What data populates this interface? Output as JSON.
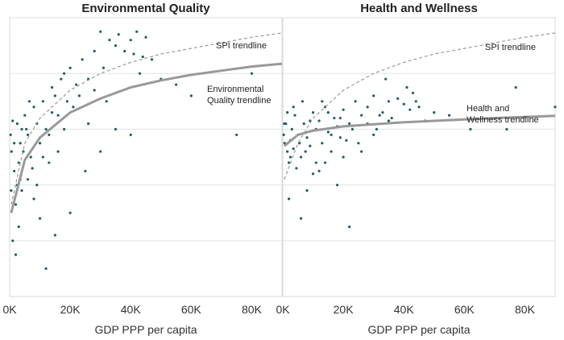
{
  "chart_data": [
    {
      "type": "scatter",
      "title": "Environmental Quality",
      "xlabel": "GDP PPP per capita",
      "xlim": [
        0,
        90000
      ],
      "x_ticks": [
        0,
        20000,
        40000,
        60000,
        80000
      ],
      "x_tick_labels": [
        "0K",
        "20K",
        "40K",
        "60K",
        "80K"
      ],
      "ylim": [
        0,
        100
      ],
      "gridlines_y": [
        20,
        40,
        60,
        80
      ],
      "trendlines": [
        {
          "name": "SPI trendline",
          "style": "dashed",
          "color": "#999999",
          "points": [
            [
              500,
              33
            ],
            [
              5000,
              55
            ],
            [
              10000,
              64
            ],
            [
              20000,
              74
            ],
            [
              30000,
              80
            ],
            [
              40000,
              84
            ],
            [
              50000,
              87
            ],
            [
              60000,
              89
            ],
            [
              70000,
              91
            ],
            [
              80000,
              93
            ],
            [
              90000,
              94.5
            ]
          ]
        },
        {
          "name": "Environmental Quality trendline",
          "style": "solid",
          "color": "#999999",
          "points": [
            [
              500,
              30
            ],
            [
              5000,
              49
            ],
            [
              10000,
              57
            ],
            [
              20000,
              66
            ],
            [
              30000,
              71
            ],
            [
              40000,
              75
            ],
            [
              50000,
              77.5
            ],
            [
              60000,
              79.5
            ],
            [
              70000,
              81
            ],
            [
              80000,
              82.5
            ],
            [
              90000,
              83.5
            ]
          ]
        }
      ],
      "annotations": [
        {
          "text": "SPI trendline",
          "lines": [
            "SPI trendline"
          ]
        },
        {
          "text": "Environmental Quality trendline",
          "lines": [
            "Environmental",
            "Quality trendline"
          ]
        }
      ],
      "points": [
        [
          300,
          58
        ],
        [
          600,
          52
        ],
        [
          1000,
          63
        ],
        [
          1500,
          45
        ],
        [
          2000,
          33
        ],
        [
          2500,
          40
        ],
        [
          3000,
          48
        ],
        [
          3500,
          55
        ],
        [
          4000,
          60
        ],
        [
          5000,
          65
        ],
        [
          6000,
          58
        ],
        [
          7000,
          50
        ],
        [
          8000,
          68
        ],
        [
          9000,
          62
        ],
        [
          10000,
          55
        ],
        [
          11000,
          70
        ],
        [
          12000,
          60
        ],
        [
          13000,
          48
        ],
        [
          14000,
          75
        ],
        [
          15000,
          72
        ],
        [
          16000,
          65
        ],
        [
          17000,
          78
        ],
        [
          18000,
          80
        ],
        [
          19000,
          70
        ],
        [
          20000,
          82
        ],
        [
          22000,
          76
        ],
        [
          24000,
          85
        ],
        [
          26000,
          78
        ],
        [
          28000,
          88
        ],
        [
          30000,
          95
        ],
        [
          31000,
          82
        ],
        [
          33000,
          92
        ],
        [
          35000,
          90
        ],
        [
          36000,
          94
        ],
        [
          38000,
          88
        ],
        [
          40000,
          92
        ],
        [
          41000,
          87
        ],
        [
          42000,
          95
        ],
        [
          43000,
          80
        ],
        [
          44000,
          86
        ],
        [
          45000,
          93
        ],
        [
          47000,
          85
        ],
        [
          50000,
          78
        ],
        [
          55000,
          76
        ],
        [
          60000,
          72
        ],
        [
          75000,
          58
        ],
        [
          80000,
          80
        ],
        [
          1000,
          20
        ],
        [
          2000,
          15
        ],
        [
          12000,
          10
        ],
        [
          3000,
          25
        ],
        [
          4000,
          38
        ],
        [
          6000,
          42
        ],
        [
          8000,
          35
        ],
        [
          10000,
          28
        ],
        [
          15000,
          22
        ],
        [
          20000,
          30
        ],
        [
          25000,
          45
        ],
        [
          30000,
          52
        ],
        [
          35000,
          60
        ],
        [
          40000,
          58
        ],
        [
          500,
          38
        ],
        [
          1500,
          55
        ],
        [
          2500,
          62
        ],
        [
          3500,
          42
        ],
        [
          4500,
          52
        ],
        [
          5500,
          60
        ],
        [
          6500,
          70
        ],
        [
          7500,
          46
        ],
        [
          9000,
          40
        ],
        [
          11000,
          50
        ],
        [
          13000,
          58
        ],
        [
          14000,
          66
        ],
        [
          16000,
          52
        ],
        [
          18000,
          60
        ],
        [
          21000,
          68
        ],
        [
          23000,
          72
        ],
        [
          26000,
          62
        ],
        [
          28000,
          74
        ],
        [
          32000,
          70
        ]
      ]
    },
    {
      "type": "scatter",
      "title": "Health and Wellness",
      "xlabel": "GDP PPP per capita",
      "xlim": [
        0,
        90000
      ],
      "x_ticks": [
        0,
        20000,
        40000,
        60000,
        80000
      ],
      "x_tick_labels": [
        "0K",
        "20K",
        "40K",
        "60K",
        "80K"
      ],
      "ylim": [
        0,
        100
      ],
      "gridlines_y": [
        20,
        40,
        60,
        80
      ],
      "trendlines": [
        {
          "name": "SPI trendline",
          "style": "dashed",
          "color": "#999999",
          "points": [
            [
              500,
              42
            ],
            [
              5000,
              55
            ],
            [
              10000,
              64
            ],
            [
              20000,
              74
            ],
            [
              30000,
              80
            ],
            [
              40000,
              84
            ],
            [
              50000,
              87
            ],
            [
              60000,
              89
            ],
            [
              70000,
              91
            ],
            [
              80000,
              93
            ],
            [
              90000,
              94.5
            ]
          ]
        },
        {
          "name": "Health and Wellness trendline",
          "style": "solid",
          "color": "#999999",
          "points": [
            [
              500,
              54
            ],
            [
              5000,
              58
            ],
            [
              10000,
              59.5
            ],
            [
              20000,
              61
            ],
            [
              30000,
              61.8
            ],
            [
              40000,
              62.5
            ],
            [
              50000,
              63
            ],
            [
              60000,
              63.5
            ],
            [
              70000,
              64
            ],
            [
              80000,
              64.4
            ],
            [
              90000,
              64.8
            ]
          ]
        }
      ],
      "annotations": [
        {
          "text": "SPI trendline",
          "lines": [
            "SPI trendline"
          ]
        },
        {
          "text": "Health and Wellness trendline",
          "lines": [
            "Health and",
            "Wellness trendline"
          ]
        }
      ],
      "points": [
        [
          300,
          58
        ],
        [
          600,
          55
        ],
        [
          1000,
          62
        ],
        [
          1500,
          52
        ],
        [
          2000,
          48
        ],
        [
          2500,
          56
        ],
        [
          3000,
          60
        ],
        [
          3500,
          53
        ],
        [
          4000,
          65
        ],
        [
          5000,
          58
        ],
        [
          6000,
          50
        ],
        [
          7000,
          62
        ],
        [
          8000,
          57
        ],
        [
          9000,
          54
        ],
        [
          10000,
          66
        ],
        [
          11000,
          60
        ],
        [
          12000,
          63
        ],
        [
          13000,
          55
        ],
        [
          14000,
          68
        ],
        [
          15000,
          59
        ],
        [
          16000,
          52
        ],
        [
          17000,
          64
        ],
        [
          18000,
          61
        ],
        [
          19000,
          57
        ],
        [
          20000,
          67
        ],
        [
          22000,
          62
        ],
        [
          24000,
          70
        ],
        [
          26000,
          65
        ],
        [
          28000,
          68
        ],
        [
          30000,
          72
        ],
        [
          31000,
          60
        ],
        [
          33000,
          66
        ],
        [
          35000,
          70
        ],
        [
          36000,
          64
        ],
        [
          38000,
          71
        ],
        [
          40000,
          69
        ],
        [
          41000,
          75
        ],
        [
          42000,
          67
        ],
        [
          43000,
          73
        ],
        [
          44000,
          70
        ],
        [
          45000,
          68
        ],
        [
          47000,
          63
        ],
        [
          50000,
          66
        ],
        [
          55000,
          65
        ],
        [
          62000,
          60
        ],
        [
          74000,
          60
        ],
        [
          77000,
          75
        ],
        [
          90000,
          68
        ],
        [
          2000,
          35
        ],
        [
          6000,
          28
        ],
        [
          12000,
          45
        ],
        [
          18000,
          40
        ],
        [
          22000,
          25
        ],
        [
          8000,
          38
        ],
        [
          10000,
          44
        ],
        [
          14000,
          48
        ],
        [
          20000,
          50
        ],
        [
          25000,
          55
        ],
        [
          30000,
          58
        ],
        [
          35000,
          63
        ],
        [
          500,
          62
        ],
        [
          1500,
          66
        ],
        [
          2500,
          50
        ],
        [
          3500,
          68
        ],
        [
          4500,
          46
        ],
        [
          5500,
          55
        ],
        [
          6500,
          70
        ],
        [
          7500,
          52
        ],
        [
          9000,
          63
        ],
        [
          11000,
          48
        ],
        [
          13000,
          70
        ],
        [
          15000,
          66
        ],
        [
          16000,
          58
        ],
        [
          19000,
          64
        ],
        [
          21000,
          56
        ],
        [
          23000,
          60
        ],
        [
          26000,
          52
        ],
        [
          28000,
          62
        ],
        [
          32000,
          65
        ],
        [
          34000,
          78
        ]
      ]
    }
  ]
}
